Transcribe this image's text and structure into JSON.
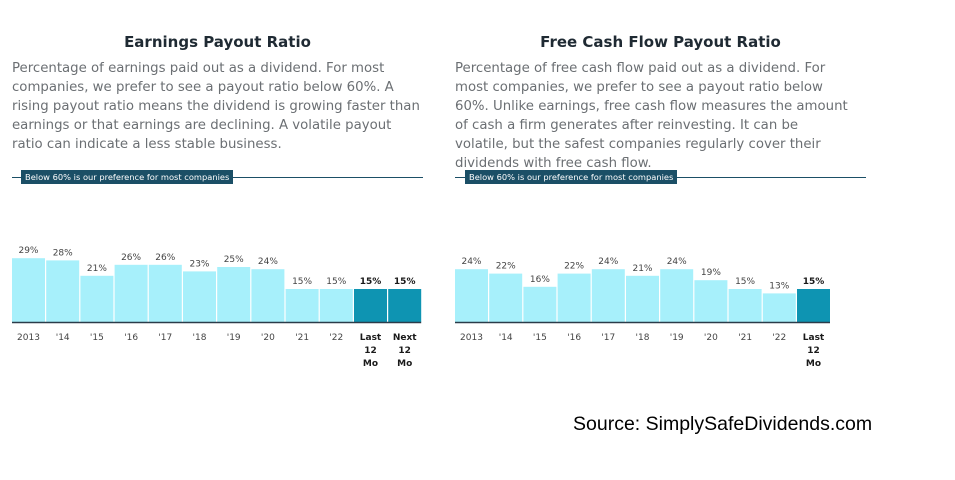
{
  "source_text": "Source: SimplySafeDividends.com",
  "colors": {
    "bar": "#a7f0fb",
    "bar_highlight": "#0e94b2",
    "baseline": "#2b3c4a",
    "badge": "#1b4f66"
  },
  "chart_data": [
    {
      "type": "bar",
      "title": "Earnings Payout Ratio",
      "description": "Percentage of earnings paid out as a dividend. For most companies, we prefer to see a payout ratio below 60%. A rising payout ratio means the dividend is growing faster than earnings or that earnings are declining. A volatile payout ratio can indicate a less stable business.",
      "reference_label": "Below 60% is our preference for most companies",
      "reference_value": 60,
      "categories": [
        "2013",
        "'14",
        "'15",
        "'16",
        "'17",
        "'18",
        "'19",
        "'20",
        "'21",
        "'22",
        "Last 12 Mo",
        "Next 12 Mo"
      ],
      "values": [
        29,
        28,
        21,
        26,
        26,
        23,
        25,
        24,
        15,
        15,
        15,
        15
      ],
      "value_labels": [
        "29%",
        "28%",
        "21%",
        "26%",
        "26%",
        "23%",
        "25%",
        "24%",
        "15%",
        "15%",
        "15%",
        "15%"
      ],
      "highlight": [
        false,
        false,
        false,
        false,
        false,
        false,
        false,
        false,
        false,
        false,
        true,
        true
      ],
      "ylim": [
        0,
        60
      ]
    },
    {
      "type": "bar",
      "title": "Free Cash Flow Payout Ratio",
      "description": "Percentage of free cash flow paid out as a dividend. For most companies, we prefer to see a payout ratio below 60%. Unlike earnings, free cash flow measures the amount of cash a firm generates after reinvesting. It can be volatile, but the safest companies regularly cover their dividends with free cash flow.",
      "reference_label": "Below 60% is our preference for most companies",
      "reference_value": 60,
      "categories": [
        "2013",
        "'14",
        "'15",
        "'16",
        "'17",
        "'18",
        "'19",
        "'20",
        "'21",
        "'22",
        "Last 12 Mo"
      ],
      "values": [
        24,
        22,
        16,
        22,
        24,
        21,
        24,
        19,
        15,
        13,
        15
      ],
      "value_labels": [
        "24%",
        "22%",
        "16%",
        "22%",
        "24%",
        "21%",
        "24%",
        "19%",
        "15%",
        "13%",
        "15%"
      ],
      "highlight": [
        false,
        false,
        false,
        false,
        false,
        false,
        false,
        false,
        false,
        false,
        true
      ],
      "ylim": [
        0,
        60
      ]
    }
  ]
}
